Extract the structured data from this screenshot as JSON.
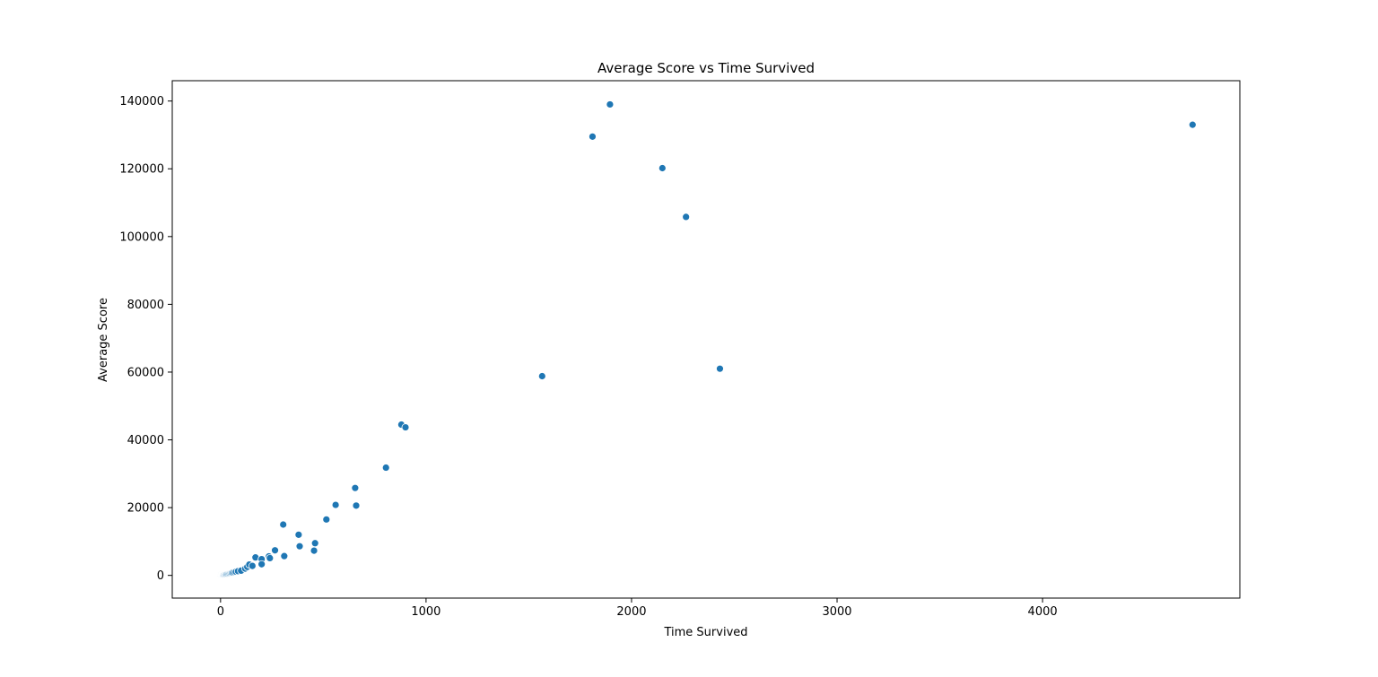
{
  "chart_data": {
    "type": "scatter",
    "title": "Average Score vs Time Survived",
    "xlabel": "Time Survived",
    "ylabel": "Average Score",
    "xlim": [
      -235,
      4960
    ],
    "ylim": [
      -6700,
      146000
    ],
    "x_ticks": [
      0,
      1000,
      2000,
      3000,
      4000
    ],
    "x_tick_labels": [
      "0",
      "1000",
      "2000",
      "3000",
      "4000"
    ],
    "y_ticks": [
      0,
      20000,
      40000,
      60000,
      80000,
      100000,
      120000,
      140000
    ],
    "y_tick_labels": [
      "0",
      "20000",
      "40000",
      "60000",
      "80000",
      "100000",
      "120000",
      "140000"
    ],
    "grid": false,
    "legend": "none",
    "marker_color": "#1f77b4",
    "marker_edge_color": "#ffffff",
    "series": [
      {
        "points": [
          [
            0,
            0
          ],
          [
            2,
            20
          ],
          [
            4,
            40
          ],
          [
            6,
            60
          ],
          [
            8,
            90
          ],
          [
            10,
            110
          ],
          [
            12,
            140
          ],
          [
            15,
            170
          ],
          [
            18,
            200
          ],
          [
            22,
            250
          ],
          [
            26,
            300
          ],
          [
            30,
            360
          ],
          [
            35,
            420
          ],
          [
            40,
            480
          ],
          [
            45,
            560
          ],
          [
            50,
            650
          ],
          [
            55,
            750
          ],
          [
            60,
            850
          ],
          [
            68,
            980
          ],
          [
            75,
            1100
          ],
          [
            85,
            1250
          ],
          [
            100,
            1400
          ],
          [
            120,
            2000
          ],
          [
            130,
            2500
          ],
          [
            140,
            3200
          ],
          [
            155,
            2800
          ],
          [
            170,
            5300
          ],
          [
            200,
            4800
          ],
          [
            200,
            3300
          ],
          [
            235,
            5600
          ],
          [
            240,
            5100
          ],
          [
            265,
            7400
          ],
          [
            305,
            15000
          ],
          [
            310,
            5700
          ],
          [
            380,
            12000
          ],
          [
            385,
            8600
          ],
          [
            455,
            7300
          ],
          [
            460,
            9500
          ],
          [
            515,
            16500
          ],
          [
            560,
            20800
          ],
          [
            655,
            25800
          ],
          [
            660,
            20600
          ],
          [
            805,
            31800
          ],
          [
            880,
            44500
          ],
          [
            900,
            43700
          ],
          [
            1565,
            58800
          ],
          [
            1810,
            129500
          ],
          [
            1895,
            139000
          ],
          [
            2150,
            120200
          ],
          [
            2265,
            105800
          ],
          [
            2430,
            61000
          ],
          [
            4730,
            133000
          ]
        ]
      }
    ]
  }
}
